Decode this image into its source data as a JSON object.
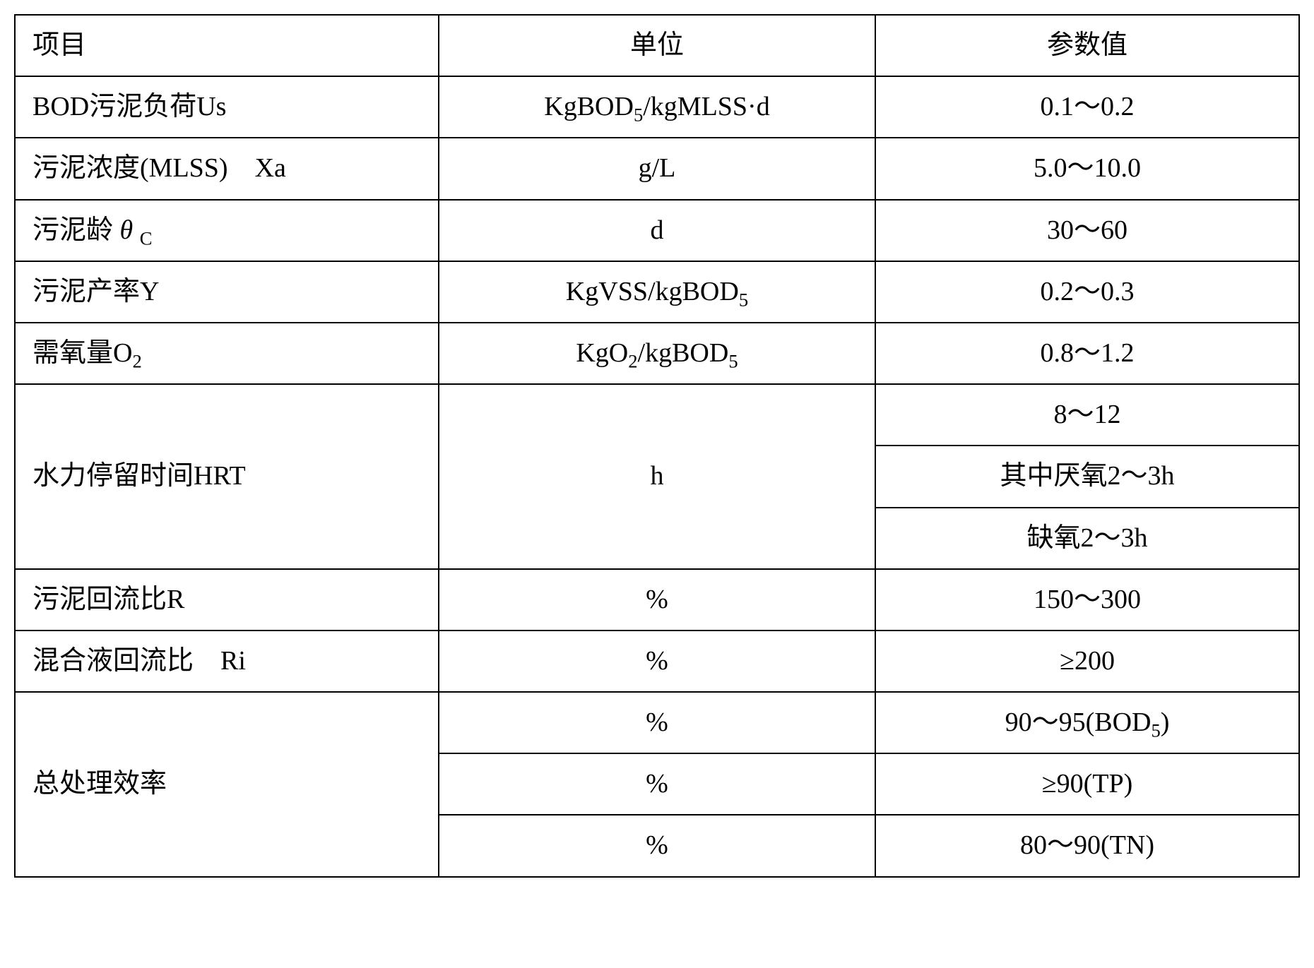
{
  "table": {
    "type": "table",
    "border_color": "#000000",
    "border_width": 2,
    "background_color": "#ffffff",
    "text_color": "#000000",
    "font_family": "SimSun",
    "header_fontsize": 38,
    "cell_fontsize": 38,
    "columns": [
      {
        "key": "item",
        "label": "项目",
        "align": "left",
        "width_pct": 33
      },
      {
        "key": "unit",
        "label": "单位",
        "align": "center",
        "width_pct": 34
      },
      {
        "key": "value",
        "label": "参数值",
        "align": "center",
        "width_pct": 33
      }
    ],
    "rows": [
      {
        "item_html": "BOD污泥负荷Us",
        "unit_html": "KgBOD<span class=\"sub\">5</span>/kgMLSS·d",
        "value_html": "0.1～0.2"
      },
      {
        "item_html": "污泥浓度(MLSS)　Xa",
        "unit_html": "g/L",
        "value_html": "5.0～10.0"
      },
      {
        "item_html": "污泥龄 <span class=\"italic\">θ</span> <span class=\"sub\">C</span>",
        "unit_html": "d",
        "value_html": "30～60"
      },
      {
        "item_html": "污泥产率Y",
        "unit_html": "KgVSS/kgBOD<span class=\"sub\">5</span>",
        "value_html": "0.2～0.3"
      },
      {
        "item_html": "需氧量O<span class=\"sub\">2</span>",
        "unit_html": "KgO<span class=\"sub\">2</span>/kgBOD<span class=\"sub\">5</span>",
        "value_html": "0.8～1.2"
      },
      {
        "item_html": "水力停留时间HRT",
        "item_rowspan": 3,
        "unit_html": "h",
        "unit_rowspan": 3,
        "value_html": "8～12"
      },
      {
        "value_html": "其中厌氧2～3h"
      },
      {
        "value_html": "缺氧2～3h"
      },
      {
        "item_html": "污泥回流比R",
        "unit_html": "%",
        "value_html": "150～300"
      },
      {
        "item_html": "混合液回流比　Ri",
        "unit_html": "%",
        "value_html": "≥200"
      },
      {
        "item_html": "总处理效率",
        "item_rowspan": 3,
        "unit_html": "%",
        "value_html": "90～95(BOD<span class=\"sub\">5</span>)"
      },
      {
        "unit_html": "%",
        "value_html": "≥90(TP)"
      },
      {
        "unit_html": "%",
        "value_html": "80～90(TN)"
      }
    ]
  }
}
